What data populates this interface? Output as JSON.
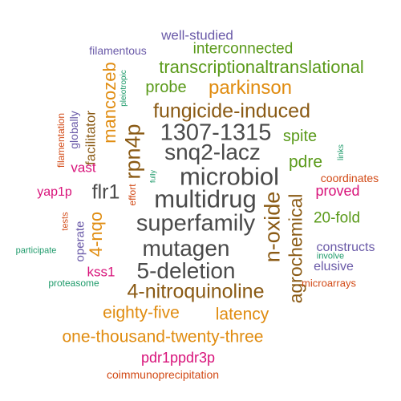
{
  "palette": {
    "gray": "#4a4a4a",
    "brown": "#8a5a14",
    "orange": "#e08c10",
    "green": "#5a9a1a",
    "magenta": "#d8137a",
    "purple": "#6a5aa8",
    "red": "#d24a16",
    "teal": "#1e9a6a"
  },
  "words": [
    {
      "text": "well-studied",
      "color": "#6a5aa8"
    },
    {
      "text": "filamentous",
      "color": "#6a5aa8"
    },
    {
      "text": "interconnected",
      "color": "#5a9a1a"
    },
    {
      "text": "transcriptionaltranslational",
      "color": "#5a9a1a"
    },
    {
      "text": "pleiotropic",
      "color": "#1e9a6a"
    },
    {
      "text": "mancozeb",
      "color": "#e08c10"
    },
    {
      "text": "probe",
      "color": "#5a9a1a"
    },
    {
      "text": "parkinson",
      "color": "#e08c10"
    },
    {
      "text": "filamentation",
      "color": "#d24a16"
    },
    {
      "text": "globally",
      "color": "#6a5aa8"
    },
    {
      "text": "facilitator",
      "color": "#8a5a14"
    },
    {
      "text": "rpn4p",
      "color": "#8a5a14"
    },
    {
      "text": "fungicide-induced",
      "color": "#8a5a14"
    },
    {
      "text": "1307-1315",
      "color": "#4a4a4a"
    },
    {
      "text": "spite",
      "color": "#5a9a1a"
    },
    {
      "text": "snq2-lacz",
      "color": "#4a4a4a"
    },
    {
      "text": "links",
      "color": "#1e9a6a"
    },
    {
      "text": "pdre",
      "color": "#5a9a1a"
    },
    {
      "text": "vast",
      "color": "#d8137a"
    },
    {
      "text": "microbiol",
      "color": "#4a4a4a"
    },
    {
      "text": "coordinates",
      "color": "#d24a16"
    },
    {
      "text": "fully",
      "color": "#1e9a6a"
    },
    {
      "text": "flr1",
      "color": "#4a4a4a"
    },
    {
      "text": "agrochemical",
      "color": "#8a5a14"
    },
    {
      "text": "yap1p",
      "color": "#d8137a"
    },
    {
      "text": "effort",
      "color": "#d24a16"
    },
    {
      "text": "multidrug",
      "color": "#4a4a4a"
    },
    {
      "text": "n-oxide",
      "color": "#8a5a14"
    },
    {
      "text": "proved",
      "color": "#d8137a"
    },
    {
      "text": "4-nqo",
      "color": "#e08c10"
    },
    {
      "text": "tests",
      "color": "#d24a16"
    },
    {
      "text": "superfamily",
      "color": "#4a4a4a"
    },
    {
      "text": "20-fold",
      "color": "#5a9a1a"
    },
    {
      "text": "operate",
      "color": "#6a5aa8"
    },
    {
      "text": "mutagen",
      "color": "#4a4a4a"
    },
    {
      "text": "constructs",
      "color": "#6a5aa8"
    },
    {
      "text": "participate",
      "color": "#1e9a6a"
    },
    {
      "text": "involve",
      "color": "#1e9a6a"
    },
    {
      "text": "kss1",
      "color": "#d8137a"
    },
    {
      "text": "5-deletion",
      "color": "#4a4a4a"
    },
    {
      "text": "elusive",
      "color": "#6a5aa8"
    },
    {
      "text": "proteasome",
      "color": "#1e9a6a"
    },
    {
      "text": "microarrays",
      "color": "#d24a16"
    },
    {
      "text": "4-nitroquinoline",
      "color": "#8a5a14"
    },
    {
      "text": "eighty-five",
      "color": "#e08c10"
    },
    {
      "text": "latency",
      "color": "#e08c10"
    },
    {
      "text": "one-thousand-twenty-three",
      "color": "#e08c10"
    },
    {
      "text": "pdr1ppdr3p",
      "color": "#d8137a"
    },
    {
      "text": "coimmunoprecipitation",
      "color": "#d24a16"
    }
  ]
}
